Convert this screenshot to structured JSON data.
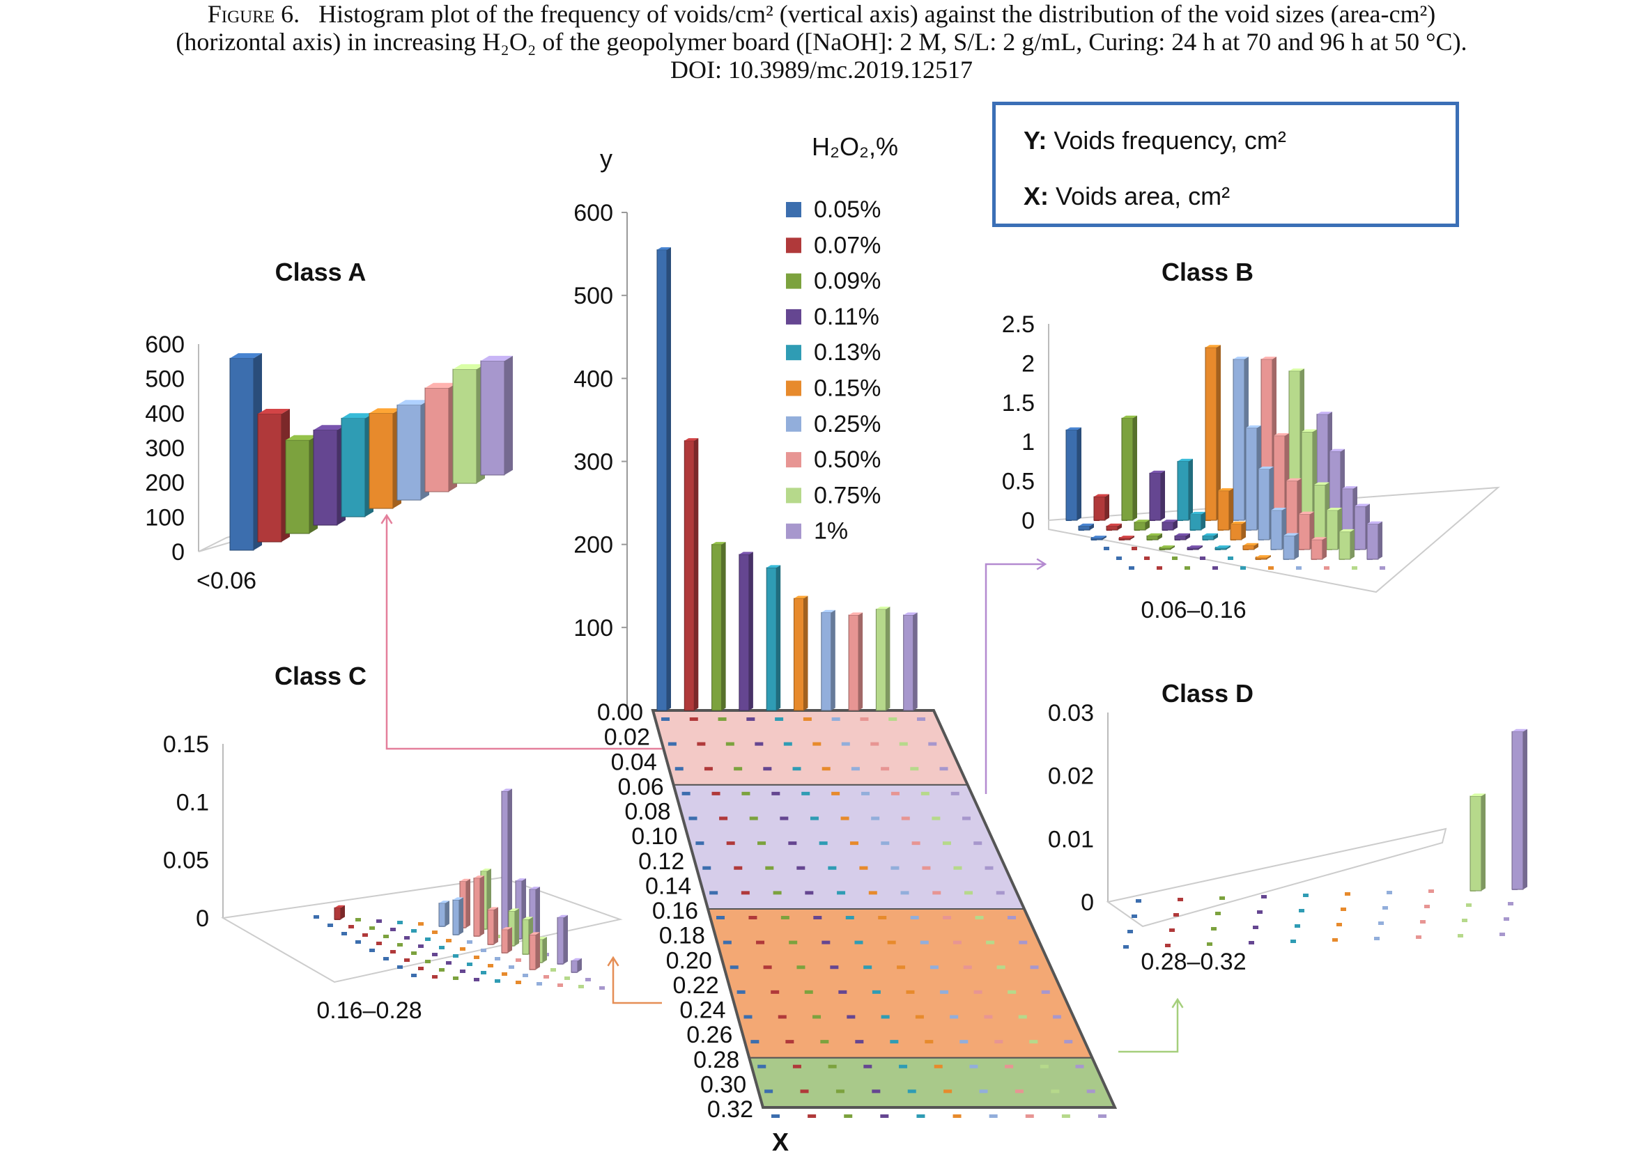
{
  "caption": {
    "line1_prefix": "Figure 6.",
    "line1": "Histogram plot of the frequency of voids/cm² (vertical axis) against the distribution of the void sizes (area-cm²)",
    "line2": "(horizontal axis) in increasing H₂O₂ of the geopolymer board ([NaOH]: 2 M, S/L: 2 g/mL, Curing: 24 h at 70 and 96 h at 50 °C).",
    "line3": "DOI: 10.3989/mc.2019.12517"
  },
  "infobox": {
    "y_key": "Y:",
    "y_text": "Voids frequency, cm²",
    "x_key": "X:",
    "x_text": "Voids area, cm²"
  },
  "colors": {
    "0.05%": "#3c6eae",
    "0.07%": "#b0393a",
    "0.09%": "#7ca23e",
    "0.11%": "#654691",
    "0.13%": "#2f9cb4",
    "0.15%": "#e78a2c",
    "0.25%": "#92aedb",
    "0.50%": "#e79593",
    "0.75%": "#b6d98b",
    "1%": "#a797cd"
  },
  "chart_data": [
    {
      "id": "main",
      "type": "bar",
      "title": "",
      "ylabel": "y",
      "xlabel": "X",
      "legend_title": "H₂O₂,%",
      "legend_position": "top-right",
      "ylim": [
        0,
        600
      ],
      "yticks": [
        100,
        200,
        300,
        400,
        500,
        600
      ],
      "x_ticks": [
        "0.00",
        "0.02",
        "0.04",
        "0.06",
        "0.08",
        "0.10",
        "0.12",
        "0.14",
        "0.16",
        "0.18",
        "0.20",
        "0.22",
        "0.24",
        "0.26",
        "0.28",
        "0.30",
        "0.32"
      ],
      "series_names": [
        "0.05%",
        "0.07%",
        "0.09%",
        "0.11%",
        "0.13%",
        "0.15%",
        "0.25%",
        "0.50%",
        "0.75%",
        "1%"
      ],
      "values_at_0.00": [
        555,
        325,
        200,
        188,
        172,
        135,
        118,
        115,
        122,
        115
      ],
      "bands": [
        {
          "from": "0.00",
          "to": "0.06",
          "color": "#f3c9c6",
          "class": "Class A"
        },
        {
          "from": "0.06",
          "to": "0.16",
          "color": "#d6cdea",
          "class": "Class B"
        },
        {
          "from": "0.16",
          "to": "0.28",
          "color": "#f3a874",
          "class": "Class C"
        },
        {
          "from": "0.28",
          "to": "0.32",
          "color": "#a9c98a",
          "class": "Class D"
        }
      ]
    },
    {
      "id": "class-a",
      "type": "bar",
      "title": "Class A",
      "category": "<0.06",
      "ylim": [
        0,
        600
      ],
      "yticks": [
        0,
        100,
        200,
        300,
        400,
        500,
        600
      ],
      "series_names": [
        "0.05%",
        "0.07%",
        "0.09%",
        "0.11%",
        "0.13%",
        "0.15%",
        "0.25%",
        "0.50%",
        "0.75%",
        "1%"
      ],
      "values": [
        555,
        370,
        270,
        275,
        285,
        275,
        275,
        300,
        330,
        330
      ]
    },
    {
      "id": "class-b",
      "type": "bar",
      "title": "Class B",
      "category": "0.06–0.16",
      "ylim": [
        0,
        2.5
      ],
      "yticks": [
        "0",
        "0.5",
        "1",
        "1.5",
        "2",
        "2.5"
      ],
      "series_names": [
        "0.05%",
        "0.07%",
        "0.09%",
        "0.11%",
        "0.13%",
        "0.15%",
        "0.25%",
        "0.50%",
        "0.75%",
        "1%"
      ],
      "rows": [
        {
          "bin": "0.06",
          "values": [
            1.15,
            0.3,
            1.3,
            0.6,
            0.75,
            2.2,
            2.05,
            2.05,
            1.9,
            1.35
          ]
        },
        {
          "bin": "0.08",
          "values": [
            0.05,
            0.05,
            0.1,
            0.1,
            0.2,
            0.5,
            1.3,
            1.2,
            1.25,
            1.0
          ]
        },
        {
          "bin": "0.10",
          "values": [
            0.02,
            0.02,
            0.05,
            0.05,
            0.05,
            0.2,
            0.9,
            0.75,
            0.7,
            0.65
          ]
        },
        {
          "bin": "0.12",
          "values": [
            0.0,
            0.0,
            0.02,
            0.02,
            0.02,
            0.05,
            0.5,
            0.45,
            0.5,
            0.55
          ]
        },
        {
          "bin": "0.14",
          "values": [
            0.0,
            0.0,
            0.0,
            0.0,
            0.0,
            0.02,
            0.3,
            0.25,
            0.35,
            0.45
          ]
        }
      ]
    },
    {
      "id": "class-c",
      "type": "bar",
      "title": "Class C",
      "category": "0.16–0.28",
      "ylim": [
        0,
        0.15
      ],
      "yticks": [
        "0",
        "0.05",
        "0.1",
        "0.15"
      ],
      "series_names": [
        "0.05%",
        "0.07%",
        "0.09%",
        "0.11%",
        "0.13%",
        "0.15%",
        "0.25%",
        "0.50%",
        "0.75%",
        "1%"
      ],
      "rows": [
        {
          "bin": "0.16",
          "values": [
            0,
            0.01,
            0,
            0,
            0,
            0,
            0.02,
            0.04,
            0.05,
            0.12
          ]
        },
        {
          "bin": "0.18",
          "values": [
            0,
            0,
            0,
            0,
            0,
            0,
            0.03,
            0.05,
            0,
            0.05
          ]
        },
        {
          "bin": "0.20",
          "values": [
            0,
            0,
            0,
            0,
            0,
            0,
            0,
            0.03,
            0.03,
            0.05
          ]
        },
        {
          "bin": "0.22",
          "values": [
            0,
            0,
            0,
            0,
            0,
            0,
            0,
            0.02,
            0.03,
            0
          ]
        },
        {
          "bin": "0.24",
          "values": [
            0,
            0,
            0,
            0,
            0,
            0,
            0,
            0,
            0.02,
            0.04
          ]
        },
        {
          "bin": "0.26",
          "values": [
            0,
            0,
            0,
            0,
            0,
            0,
            0,
            0.03,
            0,
            0.01
          ]
        }
      ]
    },
    {
      "id": "class-d",
      "type": "bar",
      "title": "Class D",
      "category": "0.28–0.32",
      "ylim": [
        0,
        0.03
      ],
      "yticks": [
        "0",
        "0.01",
        "0.02",
        "0.03"
      ],
      "series_names": [
        "0.05%",
        "0.07%",
        "0.09%",
        "0.11%",
        "0.13%",
        "0.15%",
        "0.25%",
        "0.50%",
        "0.75%",
        "1%"
      ],
      "rows": [
        {
          "bin": "0.28",
          "values": [
            0,
            0,
            0,
            0,
            0,
            0,
            0,
            0,
            0.015,
            0.025
          ]
        },
        {
          "bin": "0.30",
          "values": [
            0,
            0,
            0,
            0,
            0,
            0,
            0,
            0,
            0,
            0
          ]
        }
      ]
    }
  ]
}
